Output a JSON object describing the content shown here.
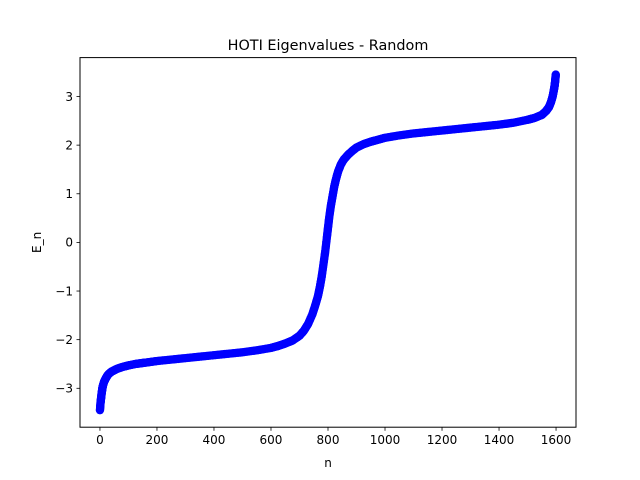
{
  "chart_data": {
    "type": "scatter",
    "title": "HOTI Eigenvalues - Random",
    "xlabel": "n",
    "ylabel": "E_n",
    "xlim": [
      -70,
      1670
    ],
    "ylim": [
      -3.8,
      3.8
    ],
    "xticks": [
      0,
      200,
      400,
      600,
      800,
      1000,
      1200,
      1400,
      1600
    ],
    "yticks": [
      -3,
      -2,
      -1,
      0,
      1,
      2,
      3
    ],
    "grid": false,
    "legend": "none",
    "marker_color": "#0000ff",
    "series": [
      {
        "x": [
          0,
          2,
          4,
          6,
          8,
          10,
          15,
          20,
          25,
          30,
          40,
          50,
          60,
          80,
          100,
          125,
          150,
          175,
          200,
          250,
          300,
          350,
          400,
          450,
          500,
          550,
          600,
          625,
          650,
          675,
          700,
          715,
          730,
          745,
          755,
          765,
          772,
          778,
          784,
          790,
          796,
          800,
          804,
          810,
          816,
          822,
          828,
          835,
          845,
          855,
          870,
          885,
          900,
          925,
          950,
          975,
          1000,
          1050,
          1100,
          1150,
          1200,
          1250,
          1300,
          1350,
          1400,
          1450,
          1500,
          1525,
          1550,
          1565,
          1575,
          1582,
          1588,
          1592,
          1595,
          1597,
          1599
        ],
        "y": [
          -3.45,
          -3.3,
          -3.2,
          -3.1,
          -3.02,
          -2.95,
          -2.86,
          -2.8,
          -2.75,
          -2.71,
          -2.66,
          -2.63,
          -2.6,
          -2.56,
          -2.53,
          -2.5,
          -2.48,
          -2.46,
          -2.44,
          -2.41,
          -2.38,
          -2.35,
          -2.32,
          -2.29,
          -2.26,
          -2.22,
          -2.17,
          -2.13,
          -2.08,
          -2.02,
          -1.92,
          -1.82,
          -1.68,
          -1.48,
          -1.3,
          -1.1,
          -0.9,
          -0.7,
          -0.45,
          -0.2,
          0.1,
          0.3,
          0.5,
          0.75,
          0.95,
          1.15,
          1.3,
          1.45,
          1.6,
          1.7,
          1.8,
          1.88,
          1.95,
          2.02,
          2.07,
          2.11,
          2.15,
          2.2,
          2.24,
          2.27,
          2.3,
          2.33,
          2.36,
          2.39,
          2.42,
          2.46,
          2.52,
          2.56,
          2.62,
          2.7,
          2.78,
          2.88,
          3.0,
          3.12,
          3.22,
          3.32,
          3.45
        ]
      }
    ]
  }
}
